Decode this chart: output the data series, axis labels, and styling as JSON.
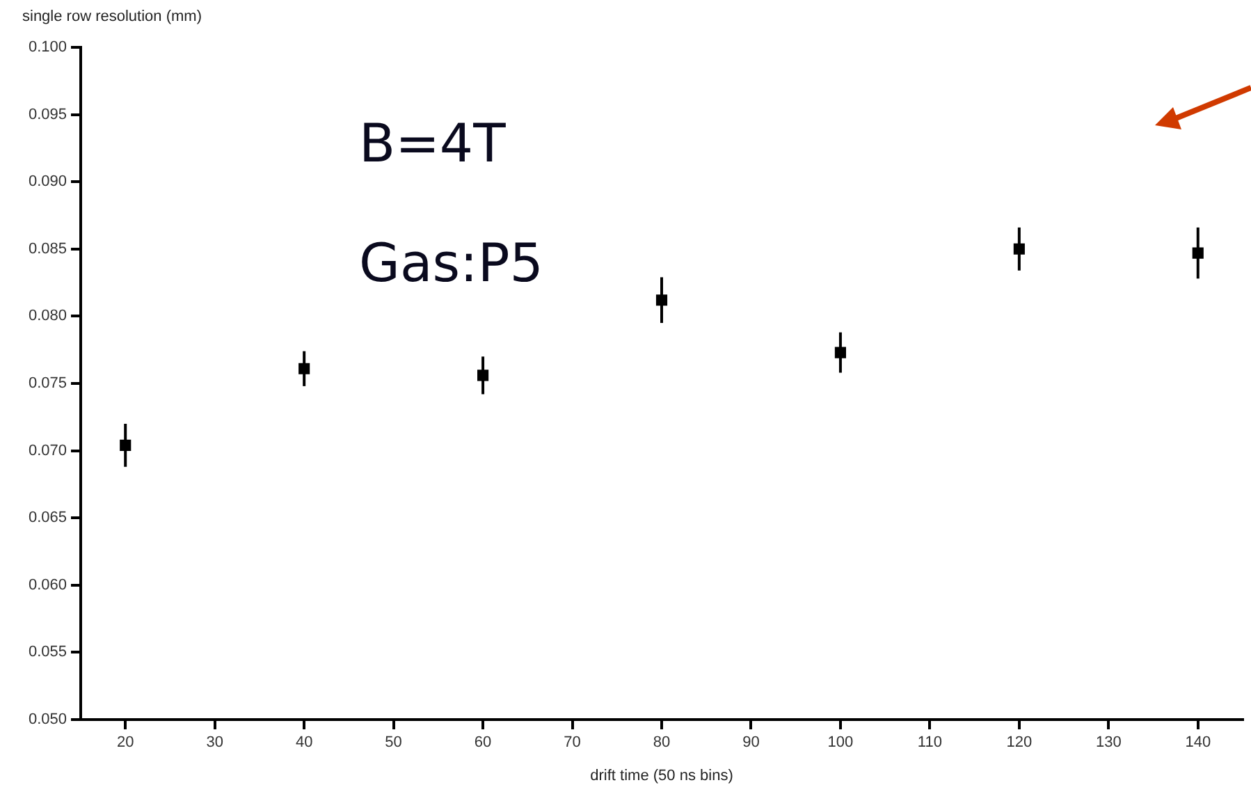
{
  "chart_data": {
    "type": "scatter",
    "xlabel": "drift time (50 ns bins)",
    "ylabel": "single row resolution (mm)",
    "annotations": [
      "B=4T",
      "Gas:P5"
    ],
    "series": [
      {
        "color": "#000000",
        "x": [
          20,
          40,
          60,
          80,
          100,
          120,
          140
        ],
        "values": [
          0.0704,
          0.0761,
          0.0756,
          0.0812,
          0.0773,
          0.085,
          0.0847
        ],
        "errors": [
          0.0016,
          0.0013,
          0.0014,
          0.0017,
          0.0015,
          0.0016,
          0.0019
        ]
      }
    ],
    "marker": "square",
    "grid": false,
    "legend": false,
    "xlim": [
      15,
      145
    ],
    "xticks": [
      20,
      30,
      40,
      50,
      60,
      70,
      80,
      90,
      100,
      110,
      120,
      130,
      140
    ],
    "ylim": [
      0.05,
      0.1
    ],
    "yticks": [
      {
        "value": 0.05,
        "label": "0.050"
      },
      {
        "value": 0.055,
        "label": "0.055"
      },
      {
        "value": 0.06,
        "label": "0.060"
      },
      {
        "value": 0.065,
        "label": "0.065"
      },
      {
        "value": 0.07,
        "label": "0.070"
      },
      {
        "value": 0.075,
        "label": "0.075"
      },
      {
        "value": 0.08,
        "label": "0.080"
      },
      {
        "value": 0.085,
        "label": "0.085"
      },
      {
        "value": 0.09,
        "label": "0.090"
      },
      {
        "value": 0.095,
        "label": "0.095"
      },
      {
        "value": 0.1,
        "label": "0.100"
      }
    ]
  }
}
